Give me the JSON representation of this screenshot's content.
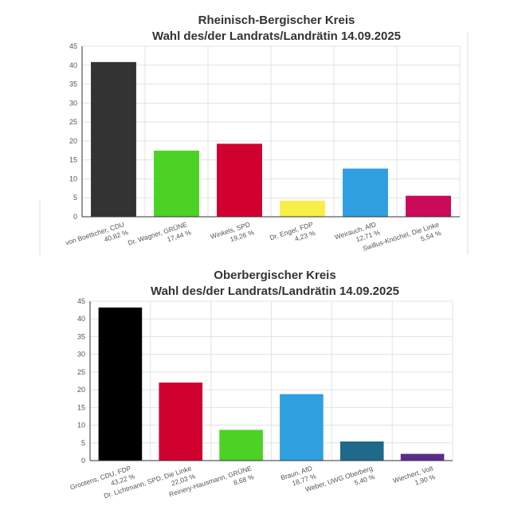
{
  "chart_data": [
    {
      "type": "bar",
      "title": [
        "Rheinisch-Bergischer Kreis",
        "Wahl des/der Landrats/Landrätin 14.09.2025"
      ],
      "ylim": [
        0,
        45
      ],
      "yticks": [
        0,
        5,
        10,
        15,
        20,
        25,
        30,
        35,
        40,
        45
      ],
      "grid": true,
      "categories": [
        {
          "name": "von Boetticher, CDU",
          "value_label": "40,82 %",
          "value": 40.82,
          "color": "#333333"
        },
        {
          "name": "Dr. Wagner, GRÜNE",
          "value_label": "17,44 %",
          "value": 17.44,
          "color": "#4cd125"
        },
        {
          "name": "Winkels, SPD",
          "value_label": "19,26 %",
          "value": 19.26,
          "color": "#d0002f"
        },
        {
          "name": "Dr. Engel, FDP",
          "value_label": "4,23 %",
          "value": 4.23,
          "color": "#f7ee48"
        },
        {
          "name": "Weirauch, AfD",
          "value_label": "12,71 %",
          "value": 12.71,
          "color": "#2f9fe0"
        },
        {
          "name": "Swillus-Knöchel, Die Linke",
          "value_label": "5,54 %",
          "value": 5.54,
          "color": "#cc0a5a"
        }
      ]
    },
    {
      "type": "bar",
      "title": [
        "Oberbergischer Kreis",
        "Wahl des/der Landrats/Landrätin 14.09.2025"
      ],
      "ylim": [
        0,
        45
      ],
      "yticks": [
        0,
        5,
        10,
        15,
        20,
        25,
        30,
        35,
        40,
        45
      ],
      "grid": true,
      "categories": [
        {
          "name": "Grootens, CDU, FDP",
          "value_label": "43,22 %",
          "value": 43.22,
          "color": "#000000"
        },
        {
          "name": "Dr. Lichtmann, SPD, Die Linke",
          "value_label": "22,03 %",
          "value": 22.03,
          "color": "#d0002f"
        },
        {
          "name": "Reinery-Hausmann, GRÜNE",
          "value_label": "8,68 %",
          "value": 8.68,
          "color": "#4cd125"
        },
        {
          "name": "Braun, AfD",
          "value_label": "18,77 %",
          "value": 18.77,
          "color": "#2f9fe0"
        },
        {
          "name": "Weber, UWG Oberberg",
          "value_label": "5,40 %",
          "value": 5.4,
          "color": "#1f6a8a"
        },
        {
          "name": "Wiechert, Volt",
          "value_label": "1,90 %",
          "value": 1.9,
          "color": "#5a2d8a"
        }
      ]
    }
  ]
}
